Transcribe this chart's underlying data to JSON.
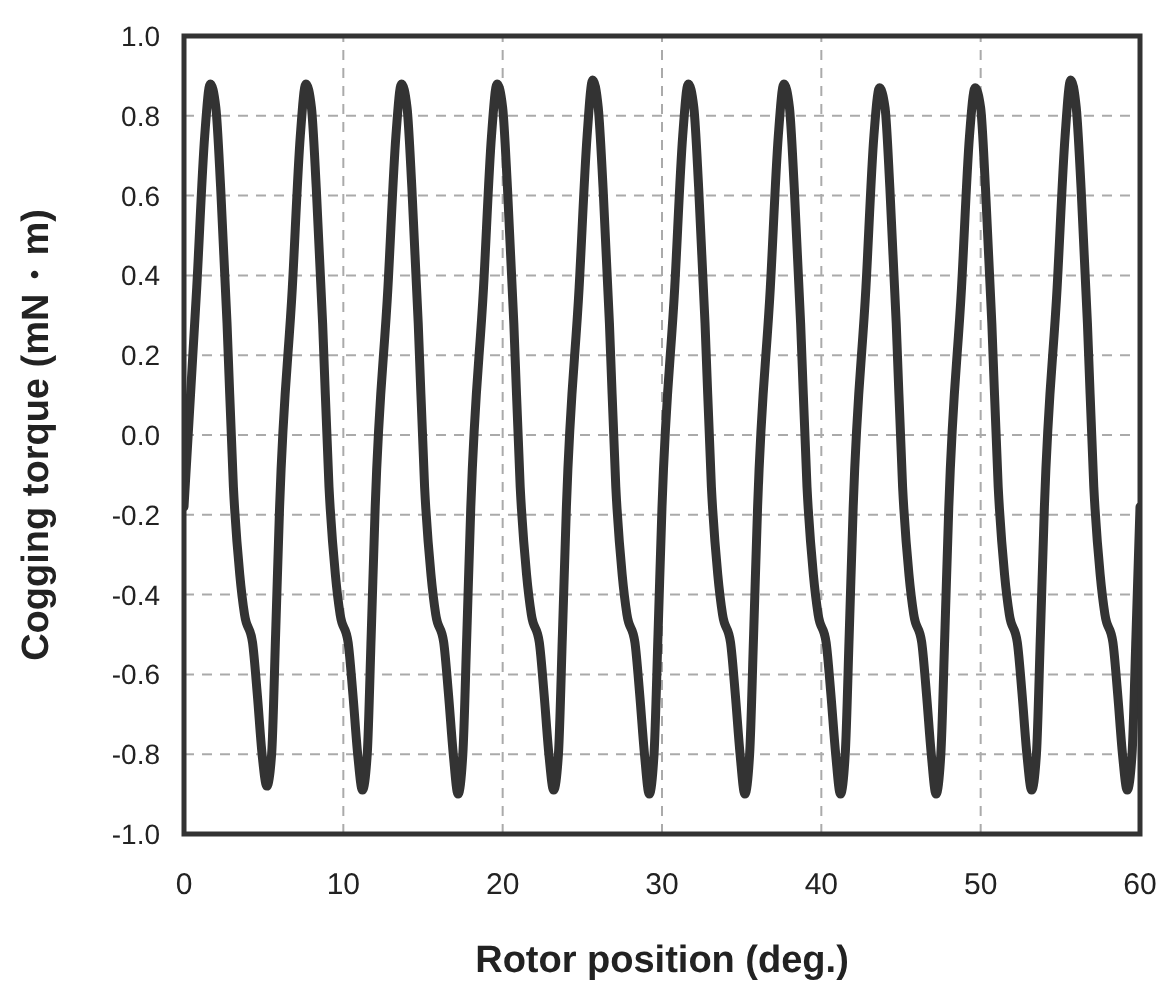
{
  "chart_data": {
    "type": "line",
    "xlabel": "Rotor position (deg.)",
    "ylabel": "Cogging torque (mN・m)",
    "xlim": [
      0,
      60
    ],
    "xticks": [
      0,
      10,
      20,
      30,
      40,
      50,
      60
    ],
    "ylim": [
      -1,
      1
    ],
    "yticks": [
      {
        "value": -1,
        "label": "-1.0"
      },
      -0.8,
      -0.6,
      -0.4,
      -0.2,
      {
        "value": 0,
        "label": "0.0"
      },
      0.2,
      0.4,
      0.6,
      0.8,
      {
        "value": 1,
        "label": "1.0"
      }
    ],
    "grid": true,
    "line_style": "solid",
    "marker": "none",
    "series": [
      {
        "color": "#333333",
        "x": [
          0,
          0.8,
          1.3,
          1.65,
          2,
          2.3,
          2.7,
          3.1,
          3.5,
          3.8,
          4.3,
          4.6,
          4.9,
          5.2,
          5.5,
          5.75,
          6,
          6.8,
          7.3,
          7.65,
          8,
          8.3,
          8.7,
          9.1,
          9.5,
          9.8,
          10.3,
          10.6,
          10.9,
          11.2,
          11.5,
          11.75,
          12,
          12.8,
          13.3,
          13.65,
          14,
          14.3,
          14.7,
          15.1,
          15.5,
          15.8,
          16.3,
          16.6,
          16.9,
          17.2,
          17.5,
          17.75,
          18,
          18.8,
          19.3,
          19.65,
          20,
          20.3,
          20.7,
          21.1,
          21.5,
          21.8,
          22.3,
          22.6,
          22.9,
          23.2,
          23.5,
          23.75,
          24,
          24.8,
          25.3,
          25.65,
          26,
          26.3,
          26.7,
          27.1,
          27.5,
          27.8,
          28.3,
          28.6,
          28.9,
          29.2,
          29.5,
          29.75,
          30,
          30.8,
          31.3,
          31.65,
          32,
          32.3,
          32.7,
          33.1,
          33.5,
          33.8,
          34.3,
          34.6,
          34.9,
          35.2,
          35.5,
          35.75,
          36,
          36.8,
          37.3,
          37.65,
          38,
          38.3,
          38.7,
          39.1,
          39.5,
          39.8,
          40.3,
          40.6,
          40.9,
          41.2,
          41.5,
          41.75,
          42,
          42.8,
          43.3,
          43.65,
          44,
          44.3,
          44.7,
          45.1,
          45.5,
          45.8,
          46.3,
          46.6,
          46.9,
          47.2,
          47.5,
          47.75,
          48,
          48.8,
          49.3,
          49.65,
          50,
          50.3,
          50.7,
          51.1,
          51.5,
          51.8,
          52.3,
          52.6,
          52.9,
          53.2,
          53.5,
          53.75,
          54,
          54.8,
          55.3,
          55.65,
          56,
          56.3,
          56.7,
          57.1,
          57.5,
          57.8,
          58.3,
          58.6,
          58.9,
          59.2,
          59.5,
          59.75,
          60
        ],
        "values": [
          -0.18,
          0.37,
          0.75,
          0.88,
          0.82,
          0.62,
          0.28,
          -0.13,
          -0.35,
          -0.45,
          -0.52,
          -0.65,
          -0.8,
          -0.88,
          -0.8,
          -0.5,
          -0.18,
          0.37,
          0.75,
          0.88,
          0.82,
          0.62,
          0.28,
          -0.13,
          -0.35,
          -0.45,
          -0.52,
          -0.65,
          -0.8,
          -0.89,
          -0.8,
          -0.5,
          -0.18,
          0.37,
          0.75,
          0.88,
          0.82,
          0.62,
          0.28,
          -0.13,
          -0.35,
          -0.45,
          -0.52,
          -0.65,
          -0.8,
          -0.9,
          -0.8,
          -0.5,
          -0.18,
          0.37,
          0.75,
          0.88,
          0.82,
          0.62,
          0.28,
          -0.13,
          -0.35,
          -0.45,
          -0.52,
          -0.65,
          -0.8,
          -0.89,
          -0.8,
          -0.5,
          -0.18,
          0.37,
          0.75,
          0.89,
          0.82,
          0.62,
          0.28,
          -0.13,
          -0.35,
          -0.45,
          -0.52,
          -0.65,
          -0.8,
          -0.9,
          -0.8,
          -0.5,
          -0.18,
          0.37,
          0.75,
          0.88,
          0.82,
          0.62,
          0.28,
          -0.13,
          -0.35,
          -0.45,
          -0.52,
          -0.65,
          -0.8,
          -0.9,
          -0.8,
          -0.5,
          -0.18,
          0.37,
          0.75,
          0.88,
          0.82,
          0.62,
          0.28,
          -0.13,
          -0.35,
          -0.45,
          -0.52,
          -0.65,
          -0.8,
          -0.9,
          -0.8,
          -0.5,
          -0.18,
          0.37,
          0.75,
          0.87,
          0.82,
          0.62,
          0.28,
          -0.13,
          -0.35,
          -0.45,
          -0.52,
          -0.65,
          -0.8,
          -0.9,
          -0.8,
          -0.5,
          -0.18,
          0.37,
          0.75,
          0.87,
          0.82,
          0.62,
          0.28,
          -0.13,
          -0.35,
          -0.45,
          -0.52,
          -0.65,
          -0.8,
          -0.89,
          -0.8,
          -0.5,
          -0.18,
          0.37,
          0.75,
          0.89,
          0.82,
          0.62,
          0.28,
          -0.13,
          -0.35,
          -0.45,
          -0.52,
          -0.65,
          -0.8,
          -0.89,
          -0.8,
          -0.5,
          -0.18
        ]
      }
    ]
  }
}
